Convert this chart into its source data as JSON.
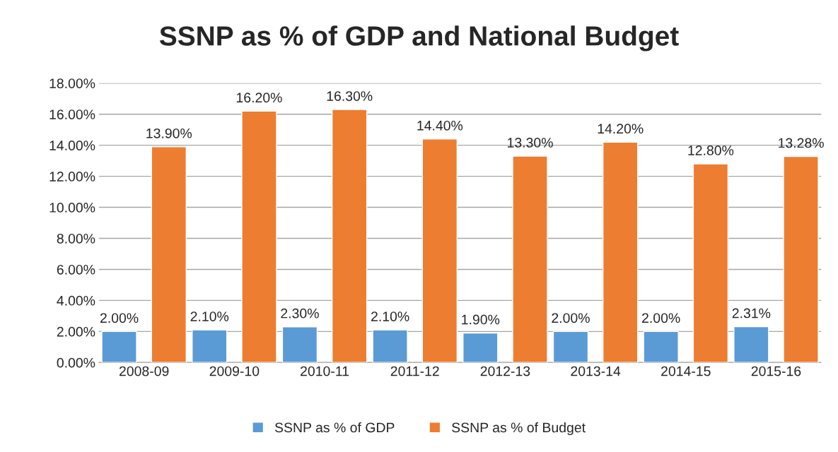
{
  "chart_data": {
    "type": "bar",
    "title": "SSNP as % of GDP and National Budget",
    "categories": [
      "2008-09",
      "2009-10",
      "2010-11",
      "2011-12",
      "2012-13",
      "2013-14",
      "2014-15",
      "2015-16"
    ],
    "series": [
      {
        "name": "SSNP as % of GDP",
        "color": "#5b9bd5",
        "values": [
          2.0,
          2.1,
          2.3,
          2.1,
          1.9,
          2.0,
          2.0,
          2.31
        ],
        "value_labels": [
          "2.00%",
          "2.10%",
          "2.30%",
          "2.10%",
          "1.90%",
          "2.00%",
          "2.00%",
          "2.31%"
        ]
      },
      {
        "name": "SSNP as % of Budget",
        "color": "#ed7d31",
        "values": [
          13.9,
          16.2,
          16.3,
          14.4,
          13.3,
          14.2,
          12.8,
          13.28
        ],
        "value_labels": [
          "13.90%",
          "16.20%",
          "16.30%",
          "14.40%",
          "13.30%",
          "14.20%",
          "12.80%",
          "13.28%"
        ]
      }
    ],
    "ylim": [
      0,
      18
    ],
    "yticks": [
      {
        "value": 0,
        "label": "0.00%"
      },
      {
        "value": 2,
        "label": "2.00%"
      },
      {
        "value": 4,
        "label": "4.00%"
      },
      {
        "value": 6,
        "label": "6.00%"
      },
      {
        "value": 8,
        "label": "8.00%"
      },
      {
        "value": 10,
        "label": "10.00%"
      },
      {
        "value": 12,
        "label": "12.00%"
      },
      {
        "value": 14,
        "label": "14.00%"
      },
      {
        "value": 16,
        "label": "16.00%"
      },
      {
        "value": 18,
        "label": "18.00%"
      }
    ],
    "grid": "y",
    "legend": "bottom"
  }
}
